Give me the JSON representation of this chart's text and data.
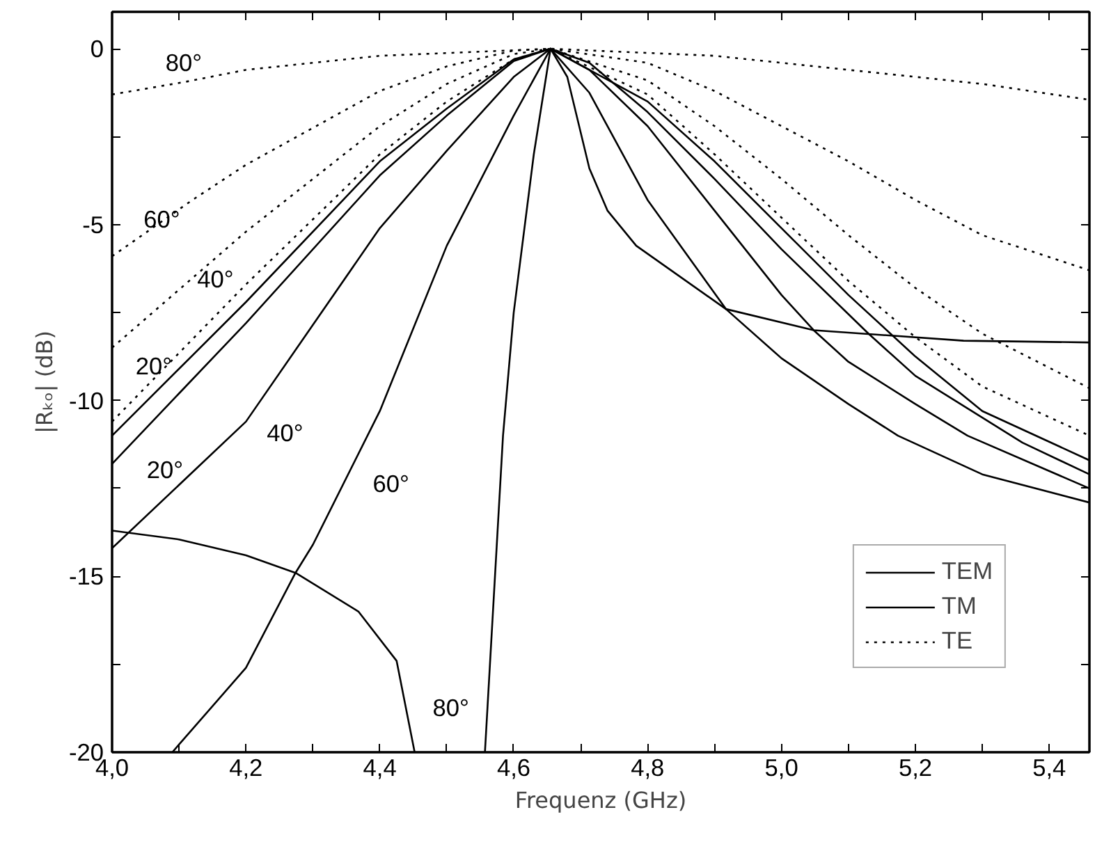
{
  "chart_data": {
    "type": "line",
    "xlabel": "Frequenz (GHz)",
    "ylabel": "|Rₖₒ| (dB)",
    "xlim": [
      4.0,
      5.46
    ],
    "ylim": [
      -20,
      1.05
    ],
    "xticks": [
      {
        "value": 4.0,
        "label": "4,0"
      },
      {
        "value": 4.1,
        "label": null
      },
      {
        "value": 4.2,
        "label": "4,2"
      },
      {
        "value": 4.3,
        "label": null
      },
      {
        "value": 4.4,
        "label": "4,4"
      },
      {
        "value": 4.5,
        "label": null
      },
      {
        "value": 4.6,
        "label": "4,6"
      },
      {
        "value": 4.7,
        "label": null
      },
      {
        "value": 4.8,
        "label": "4,8"
      },
      {
        "value": 4.9,
        "label": null
      },
      {
        "value": 5.0,
        "label": "5,0"
      },
      {
        "value": 5.1,
        "label": null
      },
      {
        "value": 5.2,
        "label": "5,2"
      },
      {
        "value": 5.3,
        "label": null
      },
      {
        "value": 5.4,
        "label": "5,4"
      }
    ],
    "yticks": [
      -20,
      {
        "value": -17.5,
        "label": null
      },
      -15,
      {
        "value": -12.5,
        "label": null
      },
      -10,
      {
        "value": -7.5,
        "label": null
      },
      -5,
      {
        "value": -2.5,
        "label": null
      },
      0
    ],
    "grid": false,
    "legend": "bottom right",
    "marker": "none",
    "series": [
      {
        "name": "TEM",
        "color": "#000000",
        "line_style": "solid",
        "x": [
          4.0,
          4.2,
          4.4,
          4.5,
          4.6,
          4.655,
          4.8,
          4.9,
          5.0,
          5.1,
          5.2,
          5.3,
          5.46
        ],
        "values": [
          -11.0,
          -7.2,
          -3.2,
          -1.7,
          -0.3,
          0,
          -1.5,
          -3.2,
          -5.1,
          -7.0,
          -8.75,
          -10.3,
          -11.7
        ]
      },
      {
        "name": "TM",
        "color": "#000000",
        "line_style": "solid",
        "x": [
          4.0,
          4.2,
          4.4,
          4.5,
          4.6,
          4.655,
          4.713,
          4.8,
          4.9,
          5.0,
          5.13,
          5.2,
          5.36,
          5.46
        ],
        "values": [
          -11.8,
          -7.8,
          -3.6,
          -1.9,
          -0.35,
          0,
          -0.4,
          -1.8,
          -3.7,
          -5.7,
          -8.1,
          -9.3,
          -11.2,
          -12.1
        ]
      },
      {
        "color": "#000000",
        "line_style": "solid",
        "x": [
          4.0,
          4.2,
          4.4,
          4.5,
          4.6,
          4.655,
          4.713,
          4.8,
          4.9,
          5.0,
          5.048,
          5.1,
          5.2,
          5.278,
          5.46
        ],
        "values": [
          -14.2,
          -10.6,
          -5.1,
          -2.9,
          -0.8,
          0,
          -0.6,
          -2.2,
          -4.6,
          -7.0,
          -8.0,
          -8.9,
          -10.1,
          -11.0,
          -12.5
        ]
      },
      {
        "color": "#000000",
        "line_style": "solid",
        "x": [
          4.09,
          4.2,
          4.274,
          4.3,
          4.4,
          4.5,
          4.6,
          4.655,
          4.713,
          4.8,
          4.917,
          5.0,
          5.1,
          5.174,
          5.3,
          5.46
        ],
        "values": [
          -20,
          -17.6,
          -14.9,
          -14.1,
          -10.3,
          -5.6,
          -1.9,
          0,
          -1.25,
          -4.3,
          -7.4,
          -8.8,
          -10.1,
          -11.0,
          -12.1,
          -12.9
        ]
      },
      {
        "color": "#000000",
        "line_style": "solid",
        "x": [
          4.0,
          4.1,
          4.2,
          4.274,
          4.368,
          4.425,
          4.452
        ],
        "values": [
          -13.7,
          -13.95,
          -14.4,
          -14.9,
          -16.0,
          -17.4,
          -20
        ]
      },
      {
        "color": "#000000",
        "line_style": "solid",
        "x": [
          4.557,
          4.584,
          4.6,
          4.63,
          4.655,
          4.68,
          4.713,
          4.74,
          4.783,
          4.917,
          5.048,
          5.272,
          5.46
        ],
        "values": [
          -20,
          -11.0,
          -7.5,
          -3.0,
          0,
          -0.8,
          -3.4,
          -4.6,
          -5.6,
          -7.4,
          -8.0,
          -8.3,
          -8.35
        ]
      },
      {
        "name": "TE",
        "color": "#000000",
        "line_style": "dotted",
        "x": [
          4.0,
          4.2,
          4.4,
          4.5,
          4.6,
          4.655,
          4.8,
          4.9,
          5.0,
          5.1,
          5.2,
          5.3,
          5.46
        ],
        "values": [
          -10.6,
          -6.7,
          -3.0,
          -1.5,
          -0.3,
          0,
          -1.3,
          -3.0,
          -4.8,
          -6.6,
          -8.2,
          -9.6,
          -11.0
        ]
      },
      {
        "color": "#000000",
        "line_style": "dotted",
        "x": [
          4.0,
          4.2,
          4.4,
          4.5,
          4.6,
          4.655,
          4.8,
          4.9,
          5.0,
          5.1,
          5.2,
          5.3,
          5.46
        ],
        "values": [
          -8.5,
          -5.2,
          -2.2,
          -1.0,
          -0.15,
          0,
          -0.9,
          -2.2,
          -3.7,
          -5.3,
          -6.8,
          -8.1,
          -9.65
        ]
      },
      {
        "color": "#000000",
        "line_style": "dotted",
        "x": [
          4.0,
          4.12,
          4.2,
          4.4,
          4.5,
          4.6,
          4.655,
          4.8,
          4.9,
          5.0,
          5.1,
          5.2,
          5.3,
          5.46
        ],
        "values": [
          -5.9,
          -4.3,
          -3.3,
          -1.2,
          -0.5,
          -0.05,
          0,
          -0.4,
          -1.2,
          -2.2,
          -3.2,
          -4.3,
          -5.3,
          -6.3
        ]
      },
      {
        "color": "#000000",
        "line_style": "dotted",
        "x": [
          4.0,
          4.107,
          4.2,
          4.4,
          4.655,
          4.9,
          5.1,
          5.3,
          5.46
        ],
        "values": [
          -1.3,
          -0.95,
          -0.6,
          -0.2,
          0,
          -0.2,
          -0.6,
          -1.0,
          -1.45
        ]
      }
    ],
    "annotations": [
      {
        "text": "80°",
        "x": 4.107,
        "y": -0.95
      },
      {
        "text": "60°",
        "x": 4.12,
        "y": -4.3
      },
      {
        "text": "40°",
        "x": 4.2,
        "y": -5.2
      },
      {
        "text": "20°",
        "x": 4.0,
        "y": -10.6
      },
      {
        "text": "20°",
        "x": 4.0,
        "y": -11.8
      },
      {
        "text": "40°",
        "x": 4.2,
        "y": -10.6
      },
      {
        "text": "60°",
        "x": 4.4,
        "y": -10.3
      },
      {
        "text": "80°",
        "x": 4.452,
        "y": -20
      }
    ]
  }
}
